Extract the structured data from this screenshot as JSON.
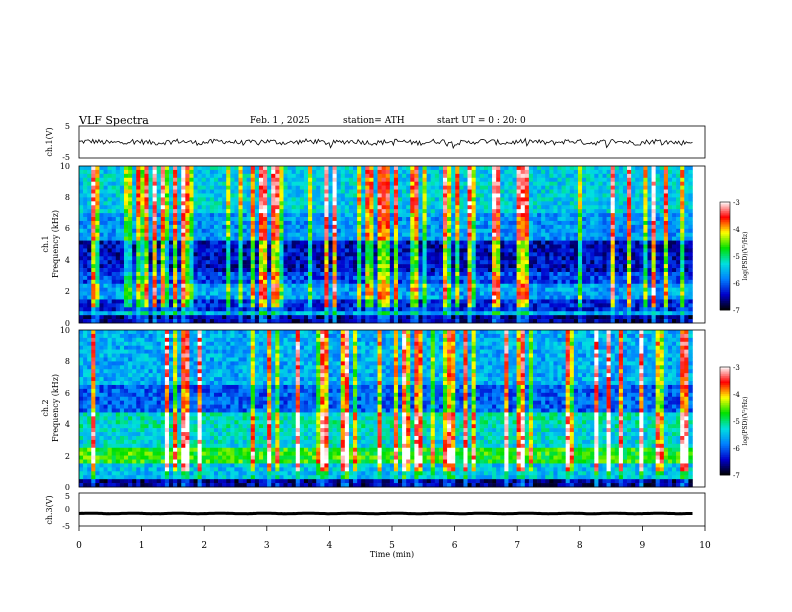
{
  "header": {
    "title": "VLF Spectra",
    "date": "Feb. 1 , 2025",
    "station": "station= ATH",
    "start": "start UT = 0 : 20: 0"
  },
  "chart_data": {
    "type": "heatmap",
    "xlabel": "Time (min)",
    "xlim": [
      0,
      10
    ],
    "x_ticks": [
      "0",
      "1",
      "2",
      "3",
      "4",
      "5",
      "6",
      "7",
      "8",
      "9",
      "10"
    ],
    "panels": [
      {
        "id": "ch1-waveform",
        "type": "line",
        "ylabel": "ch.1(V)",
        "ylim": [
          -5,
          5
        ],
        "y_ticks": [
          "5",
          "-5"
        ],
        "baseline": 0,
        "amplitude": 0.8,
        "data_extent_min": 9.8
      },
      {
        "id": "ch1-spectrogram",
        "type": "heatmap",
        "ylabel": "ch.1 Frequency (kHz)",
        "ylim": [
          0,
          10
        ],
        "y_ticks": [
          "10",
          "8",
          "6",
          "4",
          "2",
          "0"
        ],
        "data_extent_min": 9.8
      },
      {
        "id": "ch2-spectrogram",
        "type": "heatmap",
        "ylabel": "ch.2 Frequency (kHz)",
        "ylim": [
          0,
          10
        ],
        "y_ticks": [
          "10",
          "8",
          "6",
          "4",
          "2",
          "0"
        ],
        "data_extent_min": 9.8
      },
      {
        "id": "ch3-waveform",
        "type": "line",
        "ylabel": "ch.3(V)",
        "ylim": [
          -5,
          5
        ],
        "y_ticks": [
          "5",
          "0",
          "-5"
        ],
        "baseline": -1.2,
        "amplitude": 0.2,
        "data_extent_min": 9.8
      }
    ],
    "colorbar": {
      "label": "log(PSD)(V²/Hz)",
      "range": [
        -7,
        -3
      ],
      "ticks": [
        "-3",
        "-4",
        "-5",
        "-6",
        "-7"
      ],
      "colors": [
        "#000000",
        "#0000cc",
        "#0080ff",
        "#00e0e0",
        "#00e000",
        "#ffff00",
        "#ff0000",
        "#ffffff"
      ]
    }
  }
}
